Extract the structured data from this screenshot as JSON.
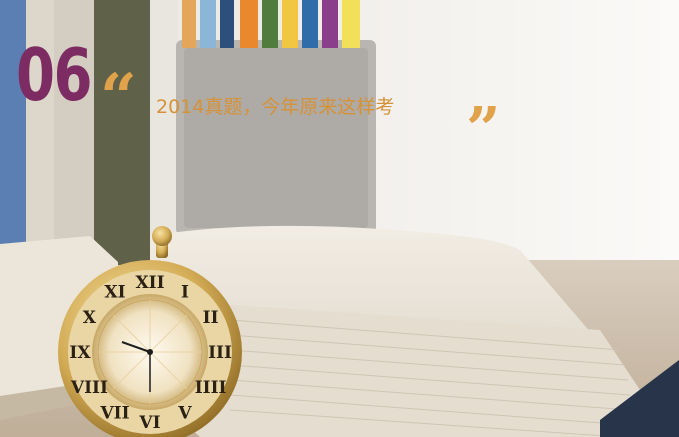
{
  "badge": {
    "number": "06"
  },
  "headline": {
    "quote_open": "“",
    "text": "2014真题，今年原来这样考",
    "quote_close": "”"
  },
  "colors": {
    "badge": "#7d2c63",
    "headline": "#d69238",
    "quotes": "#e0a24a"
  },
  "photo": {
    "clock": {
      "numerals": [
        "XII",
        "I",
        "II",
        "III",
        "IIII",
        "V",
        "VI",
        "VII",
        "VIII",
        "IX",
        "X",
        "XI"
      ]
    }
  }
}
